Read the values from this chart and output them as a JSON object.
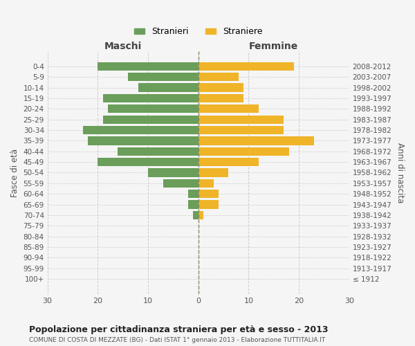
{
  "age_groups": [
    "100+",
    "95-99",
    "90-94",
    "85-89",
    "80-84",
    "75-79",
    "70-74",
    "65-69",
    "60-64",
    "55-59",
    "50-54",
    "45-49",
    "40-44",
    "35-39",
    "30-34",
    "25-29",
    "20-24",
    "15-19",
    "10-14",
    "5-9",
    "0-4"
  ],
  "birth_years": [
    "≤ 1912",
    "1913-1917",
    "1918-1922",
    "1923-1927",
    "1928-1932",
    "1933-1937",
    "1938-1942",
    "1943-1947",
    "1948-1952",
    "1953-1957",
    "1958-1962",
    "1963-1967",
    "1968-1972",
    "1973-1977",
    "1978-1982",
    "1983-1987",
    "1988-1992",
    "1993-1997",
    "1998-2002",
    "2003-2007",
    "2008-2012"
  ],
  "males": [
    0,
    0,
    0,
    0,
    0,
    0,
    1,
    2,
    2,
    7,
    10,
    20,
    16,
    22,
    23,
    19,
    18,
    19,
    12,
    14,
    20
  ],
  "females": [
    0,
    0,
    0,
    0,
    0,
    0,
    1,
    4,
    4,
    3,
    6,
    12,
    18,
    23,
    17,
    17,
    12,
    9,
    9,
    8,
    19
  ],
  "male_color": "#6a9e5a",
  "female_color": "#f0b429",
  "title": "Popolazione per cittadinanza straniera per età e sesso - 2013",
  "subtitle": "COMUNE DI COSTA DI MEZZATE (BG) - Dati ISTAT 1° gennaio 2013 - Elaborazione TUTTITALIA.IT",
  "xlabel_left": "Maschi",
  "xlabel_right": "Femmine",
  "ylabel_left": "Fasce di età",
  "ylabel_right": "Anni di nascita",
  "legend_male": "Stranieri",
  "legend_female": "Straniere",
  "xlim": 30,
  "bg_color": "#f5f5f5",
  "grid_color": "#cccccc",
  "bar_height": 0.8
}
